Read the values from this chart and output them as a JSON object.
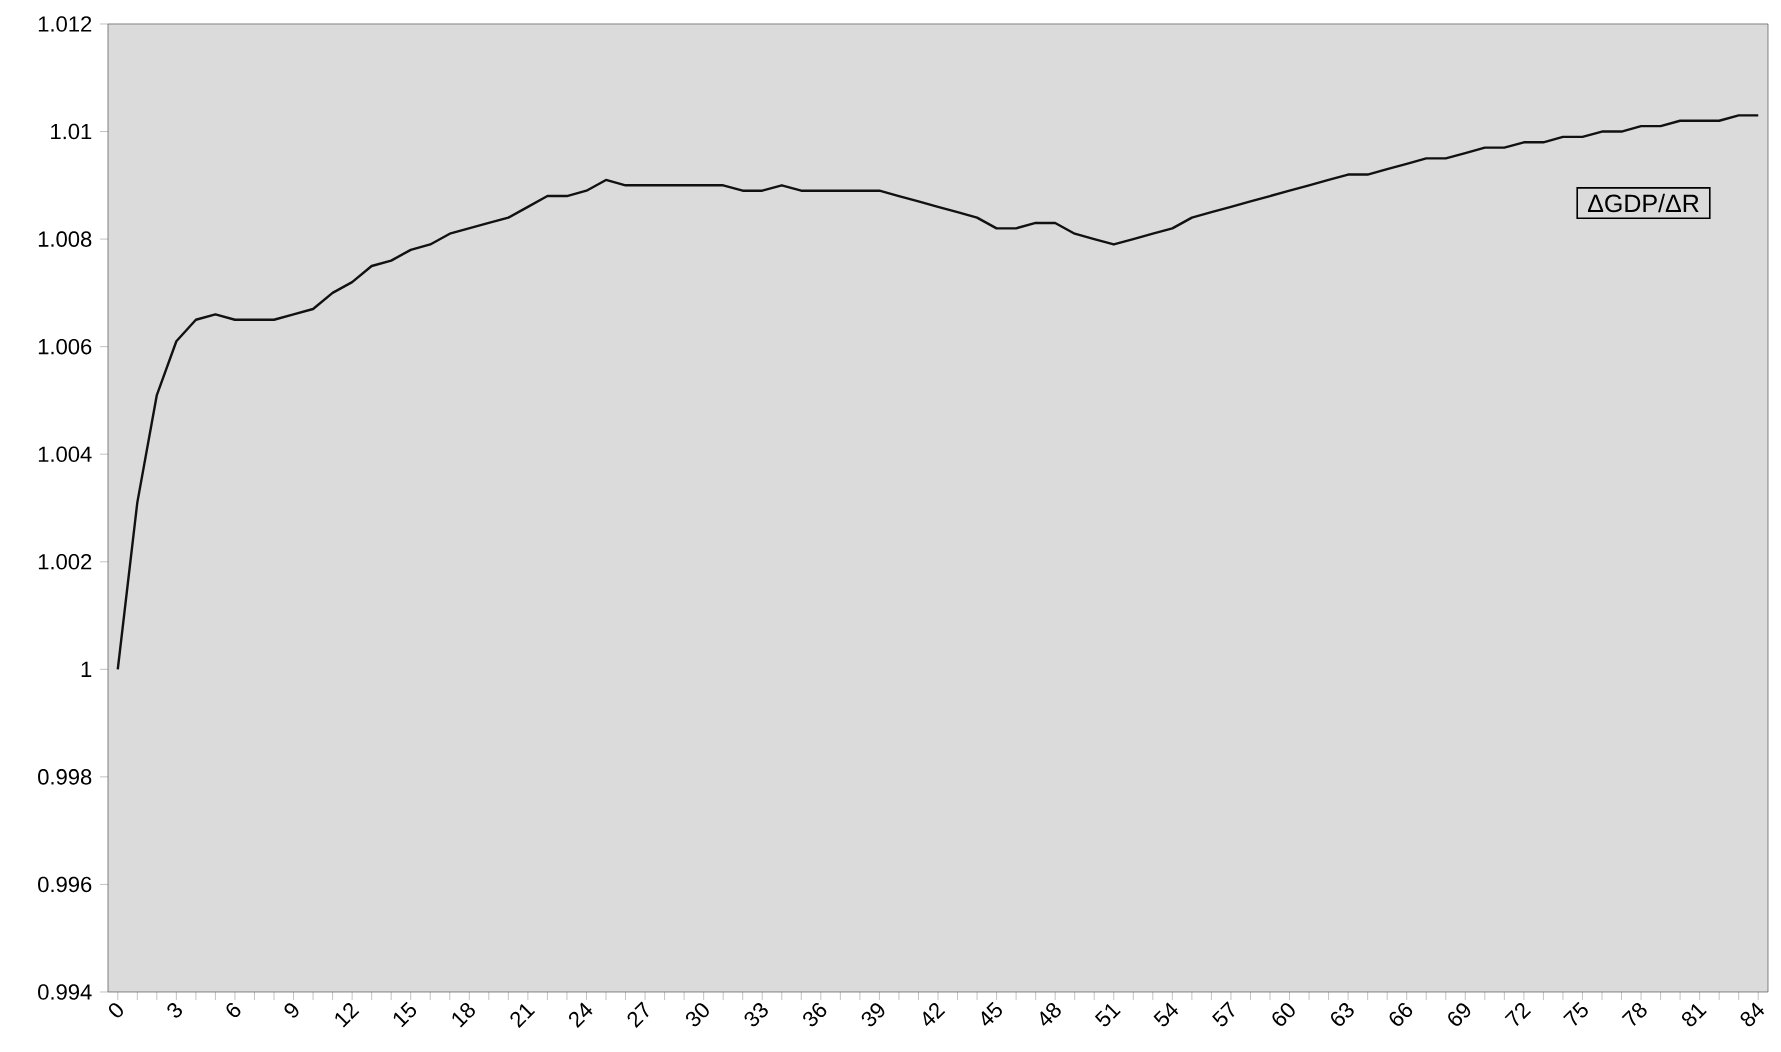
{
  "chart_data": {
    "type": "line",
    "x": [
      0,
      1,
      2,
      3,
      4,
      5,
      6,
      7,
      8,
      9,
      10,
      11,
      12,
      13,
      14,
      15,
      16,
      17,
      18,
      19,
      20,
      21,
      22,
      23,
      24,
      25,
      26,
      27,
      28,
      29,
      30,
      31,
      32,
      33,
      34,
      35,
      36,
      37,
      38,
      39,
      40,
      41,
      42,
      43,
      44,
      45,
      46,
      47,
      48,
      49,
      50,
      51,
      52,
      53,
      54,
      55,
      56,
      57,
      58,
      59,
      60,
      61,
      62,
      63,
      64,
      65,
      66,
      67,
      68,
      69,
      70,
      71,
      72,
      73,
      74,
      75,
      76,
      77,
      78,
      79,
      80,
      81,
      82,
      83,
      84
    ],
    "series": [
      {
        "name": "ΔGDP/ΔR",
        "color": "#111111",
        "values": [
          1.0,
          1.0031,
          1.0051,
          1.0061,
          1.0065,
          1.0066,
          1.0065,
          1.0065,
          1.0065,
          1.0066,
          1.0067,
          1.007,
          1.0072,
          1.0075,
          1.0076,
          1.0078,
          1.0079,
          1.0081,
          1.0082,
          1.0083,
          1.0084,
          1.0086,
          1.0088,
          1.0088,
          1.0089,
          1.0091,
          1.009,
          1.009,
          1.009,
          1.009,
          1.009,
          1.009,
          1.0089,
          1.0089,
          1.009,
          1.0089,
          1.0089,
          1.0089,
          1.0089,
          1.0089,
          1.0088,
          1.0087,
          1.0086,
          1.0085,
          1.0084,
          1.0082,
          1.0082,
          1.0083,
          1.0083,
          1.0081,
          1.008,
          1.0079,
          1.008,
          1.0081,
          1.0082,
          1.0084,
          1.0085,
          1.0086,
          1.0087,
          1.0088,
          1.0089,
          1.009,
          1.0091,
          1.0092,
          1.0092,
          1.0093,
          1.0094,
          1.0095,
          1.0095,
          1.0096,
          1.0097,
          1.0097,
          1.0098,
          1.0098,
          1.0099,
          1.0099,
          1.01,
          1.01,
          1.0101,
          1.0101,
          1.0102,
          1.0102,
          1.0102,
          1.0103,
          1.0103
        ]
      }
    ],
    "xlim": [
      -0.5,
      84.5
    ],
    "xticks": [
      0,
      {
        "value": 1,
        "label": null
      },
      {
        "value": 2,
        "label": null
      },
      3,
      {
        "value": 4,
        "label": null
      },
      {
        "value": 5,
        "label": null
      },
      6,
      {
        "value": 7,
        "label": null
      },
      {
        "value": 8,
        "label": null
      },
      9,
      {
        "value": 10,
        "label": null
      },
      {
        "value": 11,
        "label": null
      },
      12,
      {
        "value": 13,
        "label": null
      },
      {
        "value": 14,
        "label": null
      },
      15,
      {
        "value": 16,
        "label": null
      },
      {
        "value": 17,
        "label": null
      },
      18,
      {
        "value": 19,
        "label": null
      },
      {
        "value": 20,
        "label": null
      },
      21,
      {
        "value": 22,
        "label": null
      },
      {
        "value": 23,
        "label": null
      },
      24,
      {
        "value": 25,
        "label": null
      },
      {
        "value": 26,
        "label": null
      },
      27,
      {
        "value": 28,
        "label": null
      },
      {
        "value": 29,
        "label": null
      },
      30,
      {
        "value": 31,
        "label": null
      },
      {
        "value": 32,
        "label": null
      },
      33,
      {
        "value": 34,
        "label": null
      },
      {
        "value": 35,
        "label": null
      },
      36,
      {
        "value": 37,
        "label": null
      },
      {
        "value": 38,
        "label": null
      },
      39,
      {
        "value": 40,
        "label": null
      },
      {
        "value": 41,
        "label": null
      },
      42,
      {
        "value": 43,
        "label": null
      },
      {
        "value": 44,
        "label": null
      },
      45,
      {
        "value": 46,
        "label": null
      },
      {
        "value": 47,
        "label": null
      },
      48,
      {
        "value": 49,
        "label": null
      },
      {
        "value": 50,
        "label": null
      },
      51,
      {
        "value": 52,
        "label": null
      },
      {
        "value": 53,
        "label": null
      },
      54,
      {
        "value": 55,
        "label": null
      },
      {
        "value": 56,
        "label": null
      },
      57,
      {
        "value": 58,
        "label": null
      },
      {
        "value": 59,
        "label": null
      },
      60,
      {
        "value": 61,
        "label": null
      },
      {
        "value": 62,
        "label": null
      },
      63,
      {
        "value": 64,
        "label": null
      },
      {
        "value": 65,
        "label": null
      },
      66,
      {
        "value": 67,
        "label": null
      },
      {
        "value": 68,
        "label": null
      },
      69,
      {
        "value": 70,
        "label": null
      },
      {
        "value": 71,
        "label": null
      },
      72,
      {
        "value": 73,
        "label": null
      },
      {
        "value": 74,
        "label": null
      },
      75,
      {
        "value": 76,
        "label": null
      },
      {
        "value": 77,
        "label": null
      },
      78,
      {
        "value": 79,
        "label": null
      },
      {
        "value": 80,
        "label": null
      },
      81,
      {
        "value": 82,
        "label": null
      },
      {
        "value": 83,
        "label": null
      },
      84
    ],
    "ylim": [
      0.994,
      1.012
    ],
    "yticks": [
      0.994,
      0.996,
      0.998,
      1,
      1.002,
      1.004,
      1.006,
      1.008,
      1.01,
      1.012
    ],
    "grid": false,
    "marker": "none",
    "line_style": "solid"
  }
}
